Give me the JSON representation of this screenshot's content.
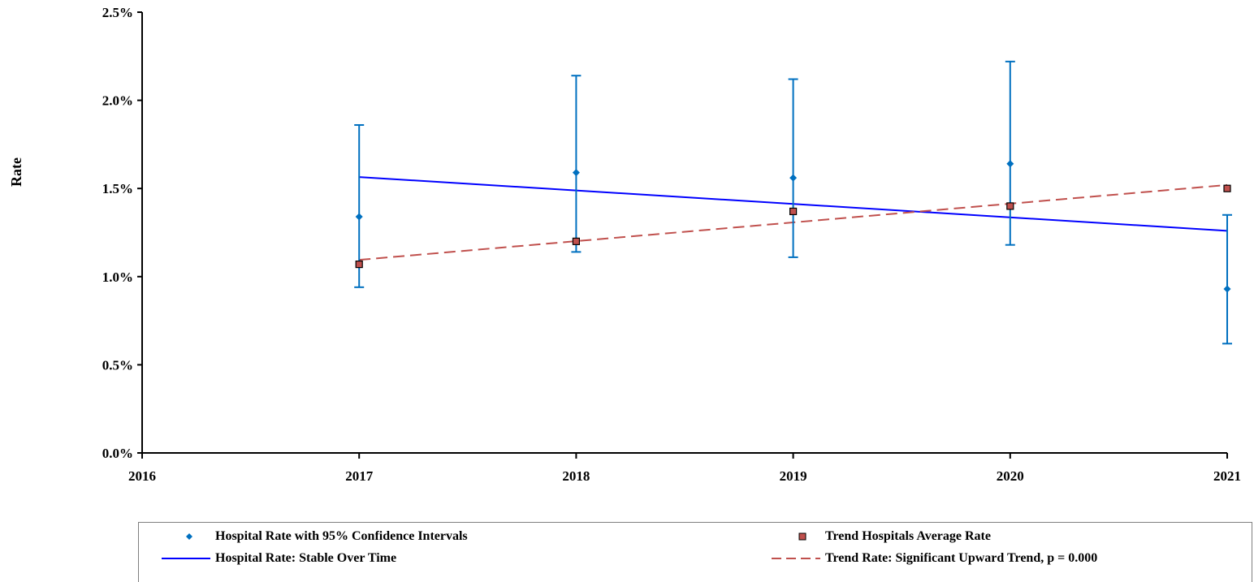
{
  "chart_data": {
    "type": "scatter",
    "ylabel": "Rate",
    "xlim": [
      2016,
      2021
    ],
    "ylim": [
      0.0,
      2.5
    ],
    "x_ticks": [
      "2016",
      "2017",
      "2018",
      "2019",
      "2020",
      "2021"
    ],
    "y_ticks": [
      "0.0%",
      "0.5%",
      "1.0%",
      "1.5%",
      "2.0%",
      "2.5%"
    ],
    "grid": false,
    "legend_position": "bottom",
    "series": [
      {
        "name": "Hospital Rate with 95% Confidence Intervals",
        "kind": "points_with_error_bars",
        "color": "#0070c0",
        "marker": "diamond",
        "points": [
          {
            "x": 2017,
            "y": 1.34,
            "low": 0.94,
            "high": 1.86
          },
          {
            "x": 2018,
            "y": 1.59,
            "low": 1.14,
            "high": 2.14
          },
          {
            "x": 2019,
            "y": 1.56,
            "low": 1.11,
            "high": 2.12
          },
          {
            "x": 2020,
            "y": 1.64,
            "low": 1.18,
            "high": 2.22
          },
          {
            "x": 2021,
            "y": 0.93,
            "low": 0.62,
            "high": 1.35
          }
        ]
      },
      {
        "name": "Trend Hospitals Average Rate",
        "kind": "points",
        "color": "#c0504d",
        "marker": "square",
        "points": [
          {
            "x": 2017,
            "y": 1.07
          },
          {
            "x": 2018,
            "y": 1.2
          },
          {
            "x": 2019,
            "y": 1.37
          },
          {
            "x": 2020,
            "y": 1.4
          },
          {
            "x": 2021,
            "y": 1.5
          }
        ]
      },
      {
        "name": "Hospital Rate: Stable Over Time",
        "kind": "line",
        "color": "#0000ff",
        "dash": "solid",
        "points": [
          {
            "x": 2017,
            "y": 1.565
          },
          {
            "x": 2021,
            "y": 1.26
          }
        ]
      },
      {
        "name": "Trend Rate: Significant Upward Trend, p = 0.000",
        "kind": "line",
        "color": "#c0504d",
        "dash": "dashed",
        "points": [
          {
            "x": 2017,
            "y": 1.095
          },
          {
            "x": 2021,
            "y": 1.52
          }
        ]
      }
    ]
  }
}
